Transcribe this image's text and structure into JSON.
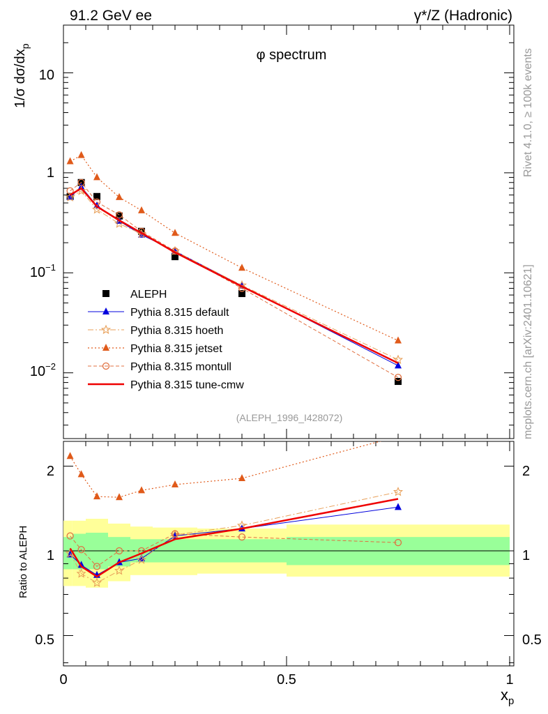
{
  "header": {
    "left": "91.2 GeV ee",
    "right": "γ*/Z (Hadronic)"
  },
  "side_labels": {
    "rivet": "Rivet 4.1.0, ≥ 100k events",
    "mcplots": "mcplots.cern.ch [arXiv:2401.10621]"
  },
  "chart_data": [
    {
      "type": "scatter",
      "title": "φ spectrum",
      "analysis_label": "(ALEPH_1996_I428072)",
      "ylabel": "1/σ dσ/dx_p",
      "yscale": "log",
      "ylim": [
        0.0022,
        30
      ],
      "xlim": [
        0,
        1
      ],
      "y_tick_labels": [
        "10",
        "1",
        "10^-1",
        "10^-2"
      ],
      "x": [
        0.015,
        0.04,
        0.075,
        0.125,
        0.175,
        0.25,
        0.4,
        0.75
      ],
      "series": [
        {
          "name": "ALEPH",
          "color": "#000000",
          "marker": "square",
          "line": "none",
          "values": [
            0.58,
            0.8,
            0.58,
            0.37,
            0.26,
            0.145,
            0.062,
            0.0082
          ]
        },
        {
          "name": "Pythia 8.315 default",
          "color": "#0000dd",
          "marker": "triangle",
          "line": "solid",
          "values": [
            0.57,
            0.72,
            0.47,
            0.33,
            0.24,
            0.165,
            0.074,
            0.0118
          ]
        },
        {
          "name": "Pythia 8.315 hoeth",
          "color": "#e8a05a",
          "marker": "star",
          "line": "dashdot",
          "values": [
            0.57,
            0.66,
            0.43,
            0.31,
            0.245,
            0.165,
            0.075,
            0.0135
          ]
        },
        {
          "name": "Pythia 8.315 jetset",
          "color": "#e05a1a",
          "marker": "triangle",
          "line": "dotted",
          "values": [
            1.3,
            1.5,
            0.9,
            0.57,
            0.42,
            0.25,
            0.112,
            0.021
          ]
        },
        {
          "name": "Pythia 8.315 montull",
          "color": "#e07040",
          "marker": "circle-open",
          "line": "dashed",
          "values": [
            0.66,
            0.8,
            0.51,
            0.38,
            0.26,
            0.165,
            0.07,
            0.009
          ]
        },
        {
          "name": "Pythia 8.315 tune-cmw",
          "color": "#ee0000",
          "marker": "none",
          "line": "solid-thick",
          "values": [
            0.6,
            0.7,
            0.46,
            0.335,
            0.25,
            0.16,
            0.073,
            0.0125
          ]
        }
      ]
    },
    {
      "type": "line",
      "ylabel": "Ratio to ALEPH",
      "xlabel": "x_p",
      "yscale": "log",
      "ylim": [
        0.39,
        2.45
      ],
      "xlim": [
        0,
        1
      ],
      "y_tick_labels": [
        "2",
        "1",
        "0.5"
      ],
      "x_tick_labels": [
        "0",
        "0.5",
        "1"
      ],
      "reference_line": 1,
      "bins": [
        {
          "lo": 0.0,
          "hi": 0.02,
          "inner": [
            0.86,
            1.12
          ],
          "outer": [
            0.75,
            1.28
          ]
        },
        {
          "lo": 0.02,
          "hi": 0.05,
          "inner": [
            0.86,
            1.15
          ],
          "outer": [
            0.75,
            1.28
          ]
        },
        {
          "lo": 0.05,
          "hi": 0.1,
          "inner": [
            0.86,
            1.16
          ],
          "outer": [
            0.74,
            1.3
          ]
        },
        {
          "lo": 0.1,
          "hi": 0.15,
          "inner": [
            0.88,
            1.12
          ],
          "outer": [
            0.78,
            1.25
          ]
        },
        {
          "lo": 0.15,
          "hi": 0.2,
          "inner": [
            0.91,
            1.1
          ],
          "outer": [
            0.82,
            1.22
          ]
        },
        {
          "lo": 0.2,
          "hi": 0.3,
          "inner": [
            0.91,
            1.1
          ],
          "outer": [
            0.82,
            1.21
          ]
        },
        {
          "lo": 0.3,
          "hi": 0.5,
          "inner": [
            0.91,
            1.1
          ],
          "outer": [
            0.83,
            1.2
          ]
        },
        {
          "lo": 0.5,
          "hi": 1.0,
          "inner": [
            0.89,
            1.12
          ],
          "outer": [
            0.81,
            1.24
          ]
        }
      ],
      "series": [
        {
          "name": "Pythia 8.315 default",
          "values": [
            0.97,
            0.89,
            0.82,
            0.91,
            0.94,
            1.13,
            1.2,
            1.43
          ]
        },
        {
          "name": "Pythia 8.315 hoeth",
          "values": [
            0.98,
            0.83,
            0.77,
            0.85,
            0.93,
            1.14,
            1.23,
            1.62
          ]
        },
        {
          "name": "Pythia 8.315 jetset",
          "values": [
            2.17,
            1.87,
            1.56,
            1.55,
            1.64,
            1.72,
            1.81,
            2.55
          ]
        },
        {
          "name": "Pythia 8.315 montull",
          "values": [
            1.13,
            1.01,
            0.88,
            1.0,
            1.0,
            1.15,
            1.12,
            1.07
          ]
        },
        {
          "name": "Pythia 8.315 tune-cmw",
          "values": [
            1.02,
            0.88,
            0.81,
            0.91,
            0.98,
            1.1,
            1.2,
            1.53
          ]
        }
      ]
    }
  ]
}
